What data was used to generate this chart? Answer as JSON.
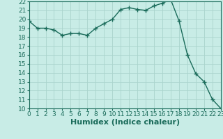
{
  "x": [
    0,
    1,
    2,
    3,
    4,
    5,
    6,
    7,
    8,
    9,
    10,
    11,
    12,
    13,
    14,
    15,
    16,
    17,
    18,
    19,
    20,
    21,
    22,
    23
  ],
  "y": [
    19.8,
    19.0,
    19.0,
    18.8,
    18.2,
    18.4,
    18.4,
    18.2,
    19.0,
    19.5,
    20.0,
    21.1,
    21.3,
    21.1,
    21.0,
    21.5,
    21.8,
    22.2,
    19.8,
    16.0,
    13.9,
    13.0,
    11.0,
    10.0
  ],
  "xlim": [
    0,
    23
  ],
  "ylim": [
    10,
    22
  ],
  "yticks": [
    10,
    11,
    12,
    13,
    14,
    15,
    16,
    17,
    18,
    19,
    20,
    21,
    22
  ],
  "xticks": [
    0,
    1,
    2,
    3,
    4,
    5,
    6,
    7,
    8,
    9,
    10,
    11,
    12,
    13,
    14,
    15,
    16,
    17,
    18,
    19,
    20,
    21,
    22,
    23
  ],
  "xlabel": "Humidex (Indice chaleur)",
  "line_color": "#1a6b5a",
  "marker": "+",
  "background_color": "#c8ece6",
  "grid_color": "#aad4cc",
  "xlabel_fontsize": 8,
  "tick_fontsize": 6.5,
  "linewidth": 1.0,
  "markersize": 4,
  "markeredgewidth": 1.0
}
